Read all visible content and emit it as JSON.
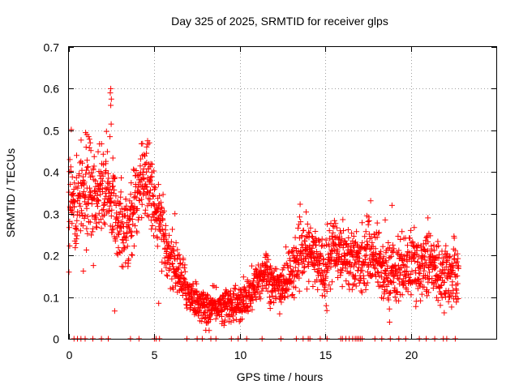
{
  "colors": {
    "series": "#ff0000",
    "grid": "#a0a0a0",
    "axis": "#000000",
    "background": "#ffffff"
  },
  "chart_data": {
    "type": "scatter",
    "title": "Day 325 of 2025, SRMTID for receiver glps",
    "xlabel": "GPS time / hours",
    "ylabel": "SRMTID / TECUs",
    "xlim": [
      0,
      25
    ],
    "ylim": [
      0,
      0.7
    ],
    "xticks": [
      0,
      5,
      10,
      15,
      20
    ],
    "xtick_labels": [
      "0",
      "5",
      "10",
      "15",
      "20"
    ],
    "yticks": [
      0,
      0.1,
      0.2,
      0.3,
      0.4,
      0.5,
      0.6,
      0.7
    ],
    "ytick_labels": [
      "0",
      "0.1",
      "0.2",
      "0.3",
      "0.4",
      "0.5",
      "0.6",
      "0.7"
    ],
    "grid": true,
    "marker": "plus",
    "trend": {
      "x": [
        0,
        0.5,
        1.0,
        1.5,
        2.0,
        2.5,
        3.0,
        3.5,
        4.0,
        4.5,
        5.0,
        5.5,
        6.0,
        6.5,
        7.0,
        7.5,
        8.0,
        8.5,
        9.0,
        9.5,
        10.0,
        10.5,
        11.0,
        11.5,
        12.0,
        12.5,
        13.0,
        13.5,
        14.0,
        14.5,
        15.0,
        15.5,
        16.0,
        16.5,
        17.0,
        17.5,
        18.0,
        18.5,
        19.0,
        19.5,
        20.0,
        20.5,
        21.0,
        21.5,
        22.0,
        22.5,
        22.8
      ],
      "y": [
        0.32,
        0.33,
        0.35,
        0.33,
        0.36,
        0.32,
        0.28,
        0.27,
        0.34,
        0.4,
        0.33,
        0.24,
        0.19,
        0.15,
        0.11,
        0.09,
        0.07,
        0.075,
        0.08,
        0.085,
        0.08,
        0.1,
        0.13,
        0.17,
        0.12,
        0.13,
        0.16,
        0.2,
        0.21,
        0.19,
        0.17,
        0.22,
        0.21,
        0.19,
        0.18,
        0.21,
        0.2,
        0.15,
        0.16,
        0.17,
        0.18,
        0.17,
        0.19,
        0.16,
        0.15,
        0.16,
        0.15
      ]
    },
    "spread": {
      "x": [
        0,
        1,
        2,
        3,
        4,
        5,
        5.5,
        6,
        7,
        8,
        9,
        10,
        11,
        12,
        13,
        14,
        15,
        16,
        17,
        18,
        19,
        20,
        21,
        22,
        22.8
      ],
      "y": [
        0.08,
        0.08,
        0.08,
        0.06,
        0.06,
        0.06,
        0.05,
        0.045,
        0.03,
        0.025,
        0.025,
        0.03,
        0.035,
        0.035,
        0.04,
        0.045,
        0.05,
        0.05,
        0.05,
        0.05,
        0.05,
        0.05,
        0.05,
        0.05,
        0.05
      ]
    },
    "density_points_per_hour": 95,
    "spikes": [
      {
        "x": 2.45,
        "y": 0.6
      },
      {
        "x": 2.42,
        "y": 0.59
      },
      {
        "x": 2.48,
        "y": 0.575
      },
      {
        "x": 2.45,
        "y": 0.56
      },
      {
        "x": 2.47,
        "y": 0.515
      },
      {
        "x": 2.4,
        "y": 0.485
      },
      {
        "x": 1.05,
        "y": 0.49
      },
      {
        "x": 1.15,
        "y": 0.485
      },
      {
        "x": 1.25,
        "y": 0.47
      },
      {
        "x": 4.6,
        "y": 0.475
      },
      {
        "x": 4.7,
        "y": 0.47
      },
      {
        "x": 4.55,
        "y": 0.46
      },
      {
        "x": 0.05,
        "y": 0.43
      },
      {
        "x": 0.45,
        "y": 0.44
      },
      {
        "x": 6.2,
        "y": 0.3
      },
      {
        "x": 18.9,
        "y": 0.32
      },
      {
        "x": 21.0,
        "y": 0.29
      },
      {
        "x": 18.5,
        "y": 0.285
      },
      {
        "x": 0.0,
        "y": 0.16
      },
      {
        "x": 5.25,
        "y": 0.085
      },
      {
        "x": 8.2,
        "y": 0.02
      }
    ],
    "zero_values_x": [
      0.3,
      0.5,
      0.7,
      0.95,
      1.4,
      1.9,
      2.3,
      3.6,
      4.1,
      5.0,
      5.1,
      5.3,
      6.9,
      7.5,
      7.8,
      8.3,
      8.6,
      9.5,
      9.9,
      10.4,
      11.3,
      12.4,
      13.3,
      13.7,
      14.0,
      14.1,
      14.7,
      15.1,
      15.9,
      16.0,
      16.2,
      16.4,
      16.6,
      16.75,
      16.85,
      16.95,
      17.05,
      17.15,
      17.9,
      18.3,
      18.8,
      19.3,
      19.7,
      20.5,
      20.9,
      21.4,
      21.9,
      22.1,
      22.6
    ]
  }
}
